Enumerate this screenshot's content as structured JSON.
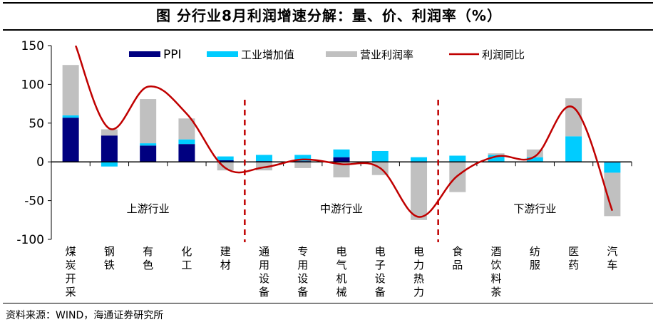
{
  "title": "图  分行业8月利润增速分解：量、价、利润率（%）",
  "source": "资料来源：WIND，海通证券研究所",
  "chart_data": {
    "type": "bar",
    "stacked": true,
    "title": "分行业8月利润增速分解：量、价、利润率（%）",
    "xlabel": "",
    "ylabel": "",
    "ylim": [
      -100,
      150
    ],
    "yticks": [
      -100,
      -50,
      0,
      50,
      100,
      150
    ],
    "grid": false,
    "legend_position": "top",
    "categories": [
      "煤炭开采",
      "钢铁",
      "有色",
      "化工",
      "建材",
      "通用设备",
      "专用设备",
      "电气机械",
      "电子设备",
      "电力热力",
      "食品",
      "酒饮料茶",
      "纺服",
      "医药",
      "汽车"
    ],
    "series": [
      {
        "name": "PPI",
        "type": "bar",
        "color": "#000080",
        "values": [
          57,
          34,
          21,
          23,
          2,
          1,
          1,
          6,
          0,
          -1,
          0,
          0,
          0,
          0,
          -1
        ]
      },
      {
        "name": "工业增加值",
        "type": "bar",
        "color": "#00CCFF",
        "values": [
          3,
          -6,
          3,
          6,
          5,
          8,
          8,
          10,
          14,
          6,
          8,
          9,
          6,
          33,
          -13
        ]
      },
      {
        "name": "营业利润率",
        "type": "bar",
        "color": "#C0C0C0",
        "values": [
          65,
          8,
          57,
          27,
          -11,
          -11,
          -8,
          -20,
          -17,
          -74,
          -39,
          2,
          10,
          49,
          -56
        ]
      },
      {
        "name": "利润同比",
        "type": "line",
        "color": "#C00000",
        "values": [
          null,
          43,
          97,
          62,
          -8,
          -7,
          3,
          -3,
          -8,
          -71,
          -18,
          7,
          7,
          70,
          -63
        ]
      }
    ],
    "line_start_note": "利润同比 for 煤炭开采 exceeds axis max (off chart above 150)",
    "section_labels": [
      "上游行业",
      "中游行业",
      "下游行业"
    ],
    "section_dividers_after": [
      "建材",
      "电力热力"
    ]
  }
}
